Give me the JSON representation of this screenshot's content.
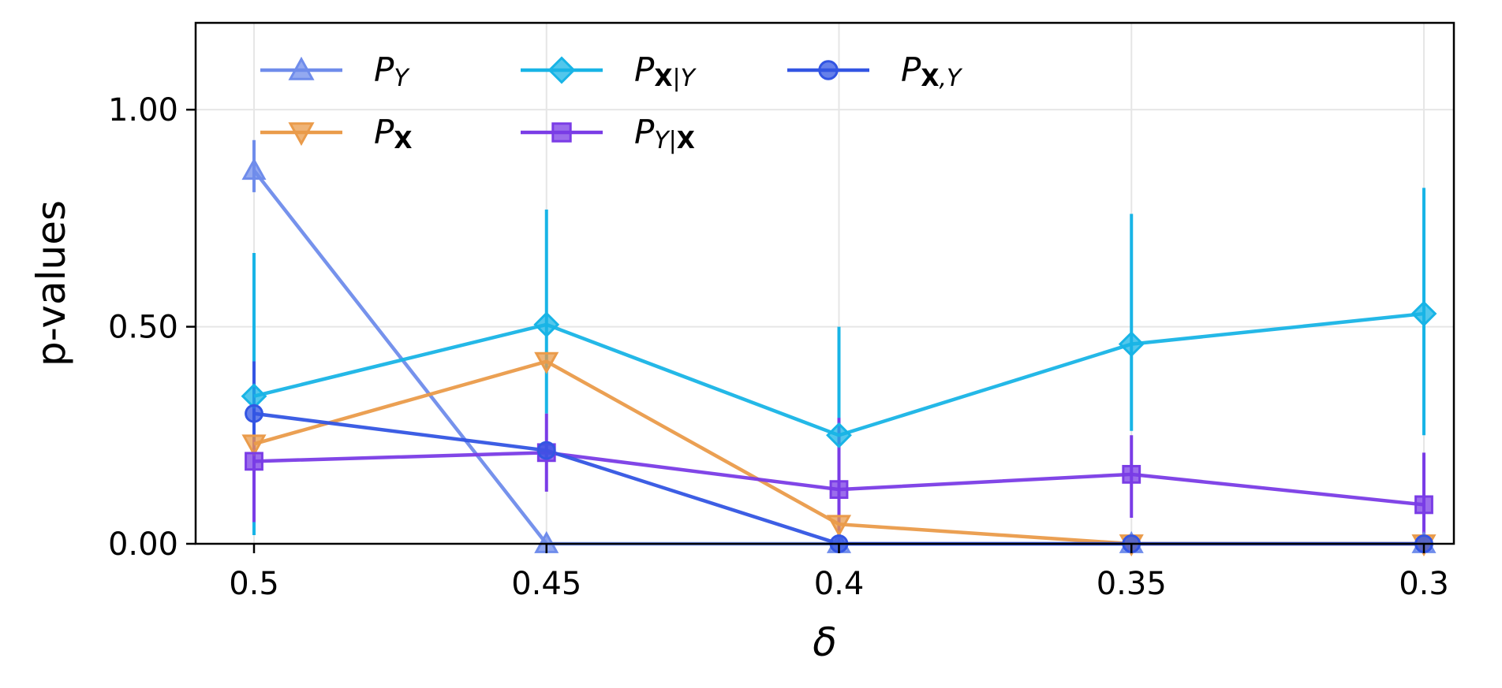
{
  "chart_data": {
    "type": "line",
    "xlabel": "δ",
    "ylabel": "p-values",
    "categories": [
      "0.5",
      "0.45",
      "0.4",
      "0.35",
      "0.3"
    ],
    "ylim": [
      0,
      1.2
    ],
    "yticks": [
      0.0,
      0.5,
      1.0
    ],
    "ytick_labels": [
      "0.00",
      "0.50",
      "1.00"
    ],
    "grid": true,
    "legend_position": "top-left",
    "series": [
      {
        "name": "P_Y",
        "name_parts": {
          "base": "P",
          "sub": "Y",
          "sub_bold": "",
          "sub_tail": ""
        },
        "color": "#6F8CEB",
        "marker": "triangle-up",
        "values": [
          0.86,
          0.0,
          0.0,
          0.0,
          0.0
        ],
        "err_low": [
          0.81,
          0.0,
          0.0,
          0.0,
          0.0
        ],
        "err_high": [
          0.93,
          0.0,
          0.0,
          0.0,
          0.0
        ]
      },
      {
        "name": "P_X",
        "name_parts": {
          "base": "P",
          "sub": "",
          "sub_bold": "X",
          "sub_tail": ""
        },
        "color": "#EA9B4A",
        "marker": "triangle-down",
        "values": [
          0.23,
          0.42,
          0.045,
          0.0,
          0.0
        ],
        "err_low": [
          0.23,
          0.42,
          0.045,
          0.0,
          0.0
        ],
        "err_high": [
          0.23,
          0.42,
          0.045,
          0.0,
          0.0
        ]
      },
      {
        "name": "P_X|Y",
        "name_parts": {
          "base": "P",
          "sub": "",
          "sub_bold": "X",
          "sub_tail": "|Y"
        },
        "color": "#18B4E6",
        "marker": "diamond",
        "values": [
          0.34,
          0.505,
          0.25,
          0.46,
          0.53
        ],
        "err_low": [
          0.02,
          0.3,
          0.0,
          0.26,
          0.25
        ],
        "err_high": [
          0.67,
          0.77,
          0.5,
          0.76,
          0.82
        ]
      },
      {
        "name": "P_Y|X",
        "name_parts": {
          "base": "P",
          "sub": "Y|",
          "sub_bold": "X",
          "sub_tail": ""
        },
        "color": "#7A3CE6",
        "marker": "square",
        "values": [
          0.19,
          0.21,
          0.125,
          0.16,
          0.09
        ],
        "err_low": [
          0.05,
          0.12,
          0.0,
          0.06,
          0.0
        ],
        "err_high": [
          0.42,
          0.3,
          0.29,
          0.25,
          0.21
        ]
      },
      {
        "name": "P_X,Y",
        "name_parts": {
          "base": "P",
          "sub": "",
          "sub_bold": "X",
          "sub_tail": ",Y"
        },
        "color": "#3355E3",
        "marker": "circle",
        "values": [
          0.3,
          0.215,
          0.0,
          0.0,
          0.0
        ],
        "err_low": [
          0.24,
          0.2,
          0.0,
          0.0,
          0.0
        ],
        "err_high": [
          0.42,
          0.23,
          0.0,
          0.0,
          0.0
        ]
      }
    ]
  }
}
